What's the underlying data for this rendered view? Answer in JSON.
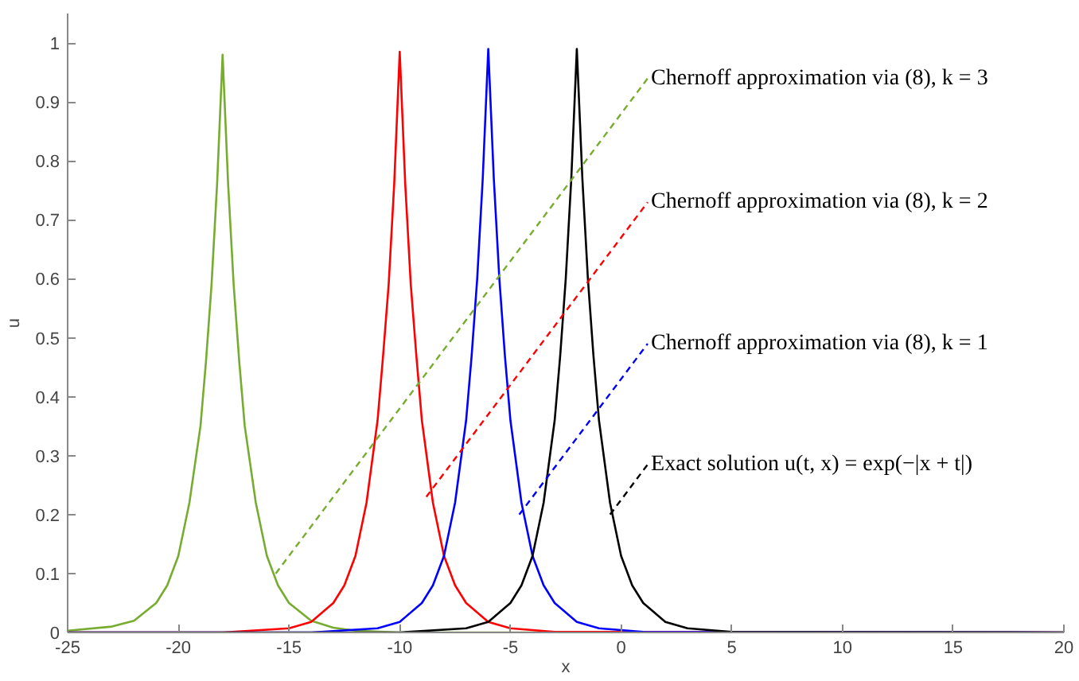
{
  "chart_data": {
    "type": "line",
    "xlabel": "x",
    "ylabel": "u",
    "xlim": [
      -25,
      20
    ],
    "ylim": [
      0,
      1.05
    ],
    "xticks": [
      -25,
      -20,
      -15,
      -10,
      -5,
      0,
      5,
      10,
      15,
      20
    ],
    "yticks": [
      0,
      0.1,
      0.2,
      0.3,
      0.4,
      0.5,
      0.6,
      0.7,
      0.8,
      0.9,
      1
    ],
    "grid": false,
    "line_style": "solid",
    "marker": "none",
    "series": [
      {
        "color": "#77ac30",
        "x": [
          -25,
          -23,
          -22,
          -21,
          -20.5,
          -20,
          -19.5,
          -19,
          -18.75,
          -18.5,
          -18.25,
          -18,
          -17.75,
          -17.5,
          -17.25,
          -17,
          -16.5,
          -16,
          -15.5,
          -15,
          -14,
          -13,
          -12,
          -10,
          20
        ],
        "values": [
          0.003,
          0.01,
          0.02,
          0.05,
          0.08,
          0.13,
          0.22,
          0.35,
          0.46,
          0.59,
          0.76,
          0.98,
          0.76,
          0.59,
          0.46,
          0.35,
          0.22,
          0.13,
          0.08,
          0.05,
          0.02,
          0.008,
          0.003,
          0,
          0
        ]
      },
      {
        "color": "#ff0000",
        "x": [
          -25,
          -18,
          -15,
          -14,
          -13,
          -12.5,
          -12,
          -11.5,
          -11,
          -10.75,
          -10.5,
          -10.25,
          -10,
          -9.75,
          -9.5,
          -9.25,
          -9,
          -8.5,
          -8,
          -7.5,
          -7,
          -6,
          -5,
          -3,
          20
        ],
        "values": [
          0,
          0,
          0.007,
          0.018,
          0.05,
          0.08,
          0.13,
          0.22,
          0.36,
          0.47,
          0.59,
          0.76,
          0.985,
          0.76,
          0.59,
          0.47,
          0.36,
          0.22,
          0.13,
          0.08,
          0.05,
          0.018,
          0.007,
          0.001,
          0
        ]
      },
      {
        "color": "#0000ff",
        "x": [
          -25,
          -14,
          -11,
          -10,
          -9,
          -8.5,
          -8,
          -7.5,
          -7,
          -6.75,
          -6.5,
          -6.25,
          -6,
          -5.75,
          -5.5,
          -5.25,
          -5,
          -4.5,
          -4,
          -3.5,
          -3,
          -2,
          -1,
          1,
          20
        ],
        "values": [
          0,
          0,
          0.007,
          0.018,
          0.05,
          0.08,
          0.13,
          0.22,
          0.36,
          0.47,
          0.6,
          0.77,
          0.99,
          0.77,
          0.6,
          0.47,
          0.36,
          0.22,
          0.13,
          0.08,
          0.05,
          0.018,
          0.007,
          0.001,
          0
        ]
      },
      {
        "color": "#000000",
        "x": [
          -25,
          -10,
          -7,
          -6,
          -5,
          -4.5,
          -4,
          -3.5,
          -3,
          -2.75,
          -2.5,
          -2.25,
          -2,
          -1.75,
          -1.5,
          -1.25,
          -1,
          -0.5,
          0,
          0.5,
          1,
          2,
          3,
          5,
          20
        ],
        "values": [
          0,
          0,
          0.007,
          0.018,
          0.05,
          0.08,
          0.13,
          0.22,
          0.36,
          0.47,
          0.6,
          0.77,
          0.99,
          0.77,
          0.6,
          0.47,
          0.36,
          0.22,
          0.13,
          0.08,
          0.05,
          0.018,
          0.007,
          0.001,
          0
        ]
      }
    ],
    "annotations": [
      {
        "text": "Chernoff approximation via (8), k = 3",
        "x": -15.6,
        "y": 0.1
      },
      {
        "text": "Chernoff approximation via (8), k = 2",
        "x": -8.8,
        "y": 0.23
      },
      {
        "text": "Chernoff approximation via (8), k = 1",
        "x": -4.6,
        "y": 0.2
      },
      {
        "text": "Exact solution u(t, x) = exp(−|x + t|)",
        "x": -0.5,
        "y": 0.2
      }
    ]
  }
}
